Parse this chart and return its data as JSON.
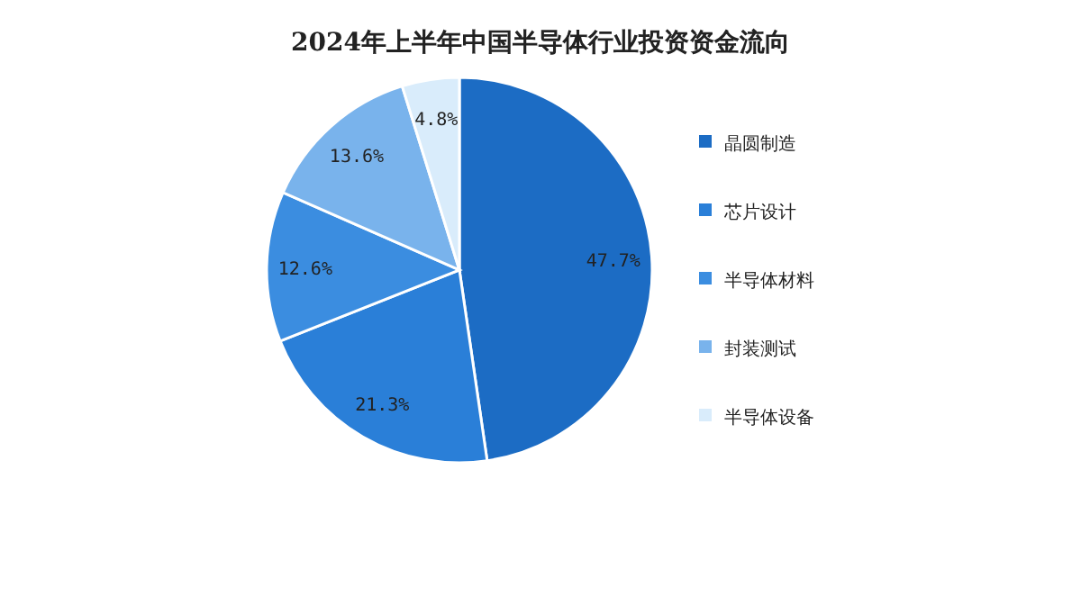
{
  "chart_data": {
    "type": "pie",
    "title": "2024年上半年中国半导体行业投资资金流向",
    "categories": [
      "晶圆制造",
      "芯片设计",
      "半导体材料",
      "封装测试",
      "半导体设备"
    ],
    "values": [
      47.7,
      21.3,
      12.6,
      13.6,
      4.8
    ],
    "colors": [
      "#1c6cc4",
      "#2a7fd8",
      "#3b8de0",
      "#79b3ec",
      "#d9ecfb"
    ],
    "value_labels": [
      "47.7%",
      "21.3%",
      "12.6%",
      "13.6%",
      "4.8%"
    ],
    "legend": "right"
  }
}
